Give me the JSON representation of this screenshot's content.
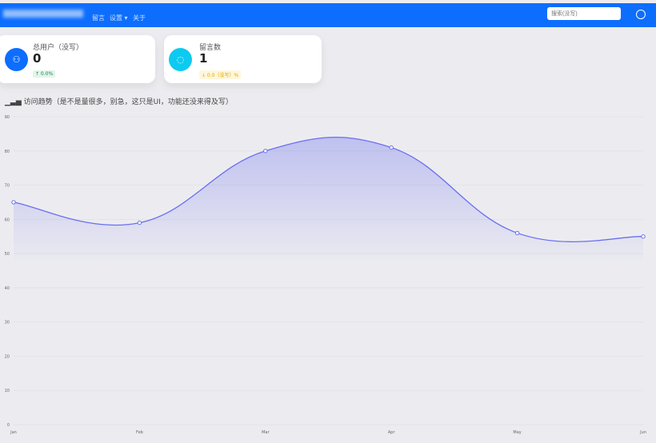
{
  "nav": {
    "menu": [
      "留言",
      "设置 ▾",
      "关于"
    ],
    "search_placeholder": "搜索(没写)"
  },
  "cards": [
    {
      "title": "总用户（没写）",
      "value": "0",
      "badge": "↑ 0.0%",
      "color": "#0d6efd"
    },
    {
      "title": "留言数",
      "value": "1",
      "badge": "↓ 0.0（没写）%",
      "color": "#0dcaf0"
    }
  ],
  "chart_title": "访问趋势（是不是量很多，别急，这只是UI，功能还没来得及写）",
  "chart_data": {
    "type": "area",
    "categories": [
      "Jan",
      "Feb",
      "Mar",
      "Apr",
      "May",
      "Jun"
    ],
    "values": [
      65,
      59,
      80,
      81,
      56,
      55
    ],
    "ylim": [
      0,
      90
    ],
    "yticks": [
      0,
      10,
      20,
      30,
      40,
      50,
      60,
      70,
      80,
      90
    ],
    "grid": true,
    "color": "#6a6ff0"
  }
}
